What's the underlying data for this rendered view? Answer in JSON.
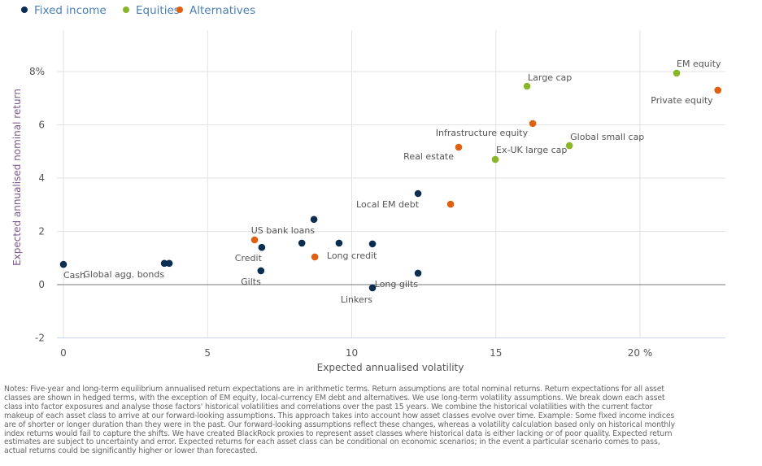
{
  "chart_data": {
    "type": "scatter",
    "xlabel": "Expected annualised volatility",
    "ylabel": "Expected annualised nominal return",
    "xlim": [
      0,
      23
    ],
    "ylim": [
      -2,
      9
    ],
    "x_ticks": [
      {
        "value": 0,
        "label": "0"
      },
      {
        "value": 5,
        "label": "5"
      },
      {
        "value": 10,
        "label": "10"
      },
      {
        "value": 15,
        "label": "15"
      },
      {
        "value": 20,
        "label": "20 %"
      }
    ],
    "y_ticks": [
      {
        "value": -2,
        "label": "-2"
      },
      {
        "value": 0,
        "label": "0"
      },
      {
        "value": 2,
        "label": "2"
      },
      {
        "value": 4,
        "label": "4"
      },
      {
        "value": 6,
        "label": "6"
      },
      {
        "value": 8,
        "label": "8%"
      }
    ],
    "grid": true,
    "legend_position": "top-left",
    "series": [
      {
        "name": "Fixed income",
        "color": "#0b2d50",
        "points": [
          {
            "x": 0.0,
            "y": 0.76,
            "label": "Cash"
          },
          {
            "x": 3.5,
            "y": 0.8,
            "label": ""
          },
          {
            "x": 3.67,
            "y": 0.8,
            "label": "Global agg. bonds"
          },
          {
            "x": 6.88,
            "y": 1.4,
            "label": "Credit"
          },
          {
            "x": 6.85,
            "y": 0.52,
            "label": "Gilts"
          },
          {
            "x": 8.69,
            "y": 2.45,
            "label": "US bank loans"
          },
          {
            "x": 8.27,
            "y": 1.56,
            "label": ""
          },
          {
            "x": 9.56,
            "y": 1.56,
            "label": "Long credit"
          },
          {
            "x": 10.72,
            "y": 1.53,
            "label": ""
          },
          {
            "x": 10.72,
            "y": -0.12,
            "label": "Linkers"
          },
          {
            "x": 12.3,
            "y": 0.43,
            "label": "Long gilts"
          },
          {
            "x": 12.3,
            "y": 3.42,
            "label": "Local EM debt"
          }
        ]
      },
      {
        "name": "Equities",
        "color": "#8ab528",
        "points": [
          {
            "x": 16.08,
            "y": 7.45,
            "label": "Large cap"
          },
          {
            "x": 14.98,
            "y": 4.7,
            "label": "Ex-UK large cap"
          },
          {
            "x": 17.55,
            "y": 5.22,
            "label": "Global small cap"
          },
          {
            "x": 21.27,
            "y": 7.94,
            "label": "EM equity"
          }
        ]
      },
      {
        "name": "Alternatives",
        "color": "#e0600f",
        "points": [
          {
            "x": 6.63,
            "y": 1.68,
            "label": ""
          },
          {
            "x": 8.72,
            "y": 1.04,
            "label": ""
          },
          {
            "x": 13.43,
            "y": 3.02,
            "label": ""
          },
          {
            "x": 13.71,
            "y": 5.16,
            "label": "Real estate"
          },
          {
            "x": 16.28,
            "y": 6.05,
            "label": "Infrastructure equity"
          },
          {
            "x": 22.7,
            "y": 7.3,
            "label": "Private equity"
          }
        ]
      }
    ]
  },
  "notes": [
    "Notes: Five-year and long-term equilibrium annualised return expectations are in arithmetic terms. Return assumptions are total nominal returns. Return expectations for all asset",
    "classes are shown in hedged terms, with the exception of EM equity, local-currency EM debt and alternatives. We use long-term volatility assumptions. We break down each asset",
    "class into factor exposures and analyse those factors' historical volatilities and correlations over the past 15 years. We combine the historical volatilities with the current factor",
    "makeup of each asset class to arrive at our forward-looking assumptions. This approach takes into account how asset classes evolve over time. Example: Some fixed income indices",
    "are of shorter or longer duration than they were in the past. Our forward-looking assumptions reflect these changes, whereas a volatility calculation based only on historical monthly",
    "index returns would fail to capture the shifts. We have created BlackRock proxies to represent asset classes where historical data is either lacking or of poor quality. Expected return",
    "estimates are subject to uncertainty and error. Expected returns for each asset class can be conditional on economic scenarios; in the event a particular scenario comes to pass,",
    "actual returns could be significantly higher or lower than forecasted."
  ]
}
